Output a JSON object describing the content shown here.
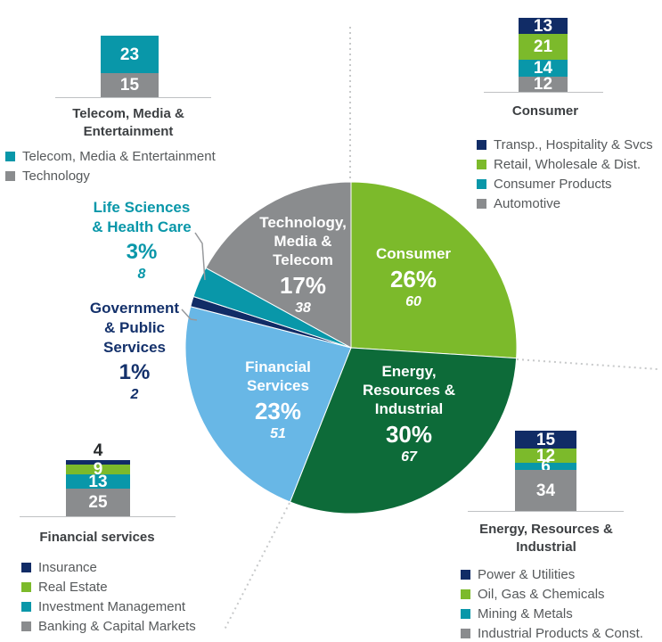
{
  "palette": {
    "navy": "#112C66",
    "green": "#7CBA2B",
    "teal": "#0997A9",
    "gray": "#8A8C8E",
    "dark_green": "#0D6B39",
    "light_blue": "#68B7E6"
  },
  "chart_data": {
    "type": "pie",
    "title": "",
    "legend_position": "around",
    "pie": {
      "center_note": "clockwise from 12 o'clock",
      "slices": [
        {
          "name": "Consumer",
          "percent": 26,
          "count": 60,
          "color_key": "green",
          "lines": [
            "Consumer"
          ],
          "percent_label": "26%",
          "count_label": "60"
        },
        {
          "name": "Energy, Resources & Industrial",
          "percent": 30,
          "count": 67,
          "color_key": "dark_green",
          "lines": [
            "Energy,",
            "Resources &",
            "Industrial"
          ],
          "percent_label": "30%",
          "count_label": "67"
        },
        {
          "name": "Financial Services",
          "percent": 23,
          "count": 51,
          "color_key": "light_blue",
          "lines": [
            "Financial",
            "Services"
          ],
          "percent_label": "23%",
          "count_label": "51"
        },
        {
          "name": "Government & Public Services",
          "percent": 1,
          "count": 2,
          "color_key": "navy",
          "lines": [
            "Government",
            "& Public",
            "Services"
          ],
          "percent_label": "1%",
          "count_label": "2"
        },
        {
          "name": "Life Sciences & Health Care",
          "percent": 3,
          "count": 8,
          "color_key": "teal",
          "lines": [
            "Life Sciences",
            "& Health Care"
          ],
          "percent_label": "3%",
          "count_label": "8"
        },
        {
          "name": "Technology, Media & Telecom",
          "percent": 17,
          "count": 38,
          "color_key": "gray",
          "lines": [
            "Technology,",
            "Media &",
            "Telecom"
          ],
          "percent_label": "17%",
          "count_label": "38"
        }
      ]
    },
    "bar_charts": [
      {
        "id": "telecom-media-entertainment",
        "type": "stacked-bar",
        "title": "Telecom, Media & Entertainment",
        "title_lines": [
          "Telecom, Media &",
          "Entertainment"
        ],
        "segments": [
          {
            "label": "Telecom, Media & Entertainment",
            "value": 23,
            "color_key": "teal"
          },
          {
            "label": "Technology",
            "value": 15,
            "color_key": "gray"
          }
        ]
      },
      {
        "id": "consumer",
        "type": "stacked-bar",
        "title": "Consumer",
        "title_lines": [
          "Consumer"
        ],
        "segments": [
          {
            "label": "Transp., Hospitality & Svcs",
            "value": 13,
            "color_key": "navy"
          },
          {
            "label": "Retail, Wholesale & Dist.",
            "value": 21,
            "color_key": "green"
          },
          {
            "label": "Consumer Products",
            "value": 14,
            "color_key": "teal"
          },
          {
            "label": "Automotive",
            "value": 12,
            "color_key": "gray"
          }
        ]
      },
      {
        "id": "financial-services",
        "type": "stacked-bar",
        "title": "Financial services",
        "title_lines": [
          "Financial services"
        ],
        "segments": [
          {
            "label": "Insurance",
            "value": 4,
            "color_key": "navy",
            "value_outside": true
          },
          {
            "label": "Real Estate",
            "value": 9,
            "color_key": "green"
          },
          {
            "label": "Investment Management",
            "value": 13,
            "color_key": "teal"
          },
          {
            "label": "Banking & Capital Markets",
            "value": 25,
            "color_key": "gray"
          }
        ]
      },
      {
        "id": "energy-resources-industrial",
        "type": "stacked-bar",
        "title": "Energy, Resources & Industrial",
        "title_lines": [
          "Energy, Resources &",
          "Industrial"
        ],
        "segments": [
          {
            "label": "Power & Utilities",
            "value": 15,
            "color_key": "navy"
          },
          {
            "label": "Oil, Gas & Chemicals",
            "value": 12,
            "color_key": "green"
          },
          {
            "label": "Mining & Metals",
            "value": 6,
            "color_key": "teal"
          },
          {
            "label": "Industrial Products & Const.",
            "value": 34,
            "color_key": "gray"
          }
        ]
      }
    ]
  }
}
